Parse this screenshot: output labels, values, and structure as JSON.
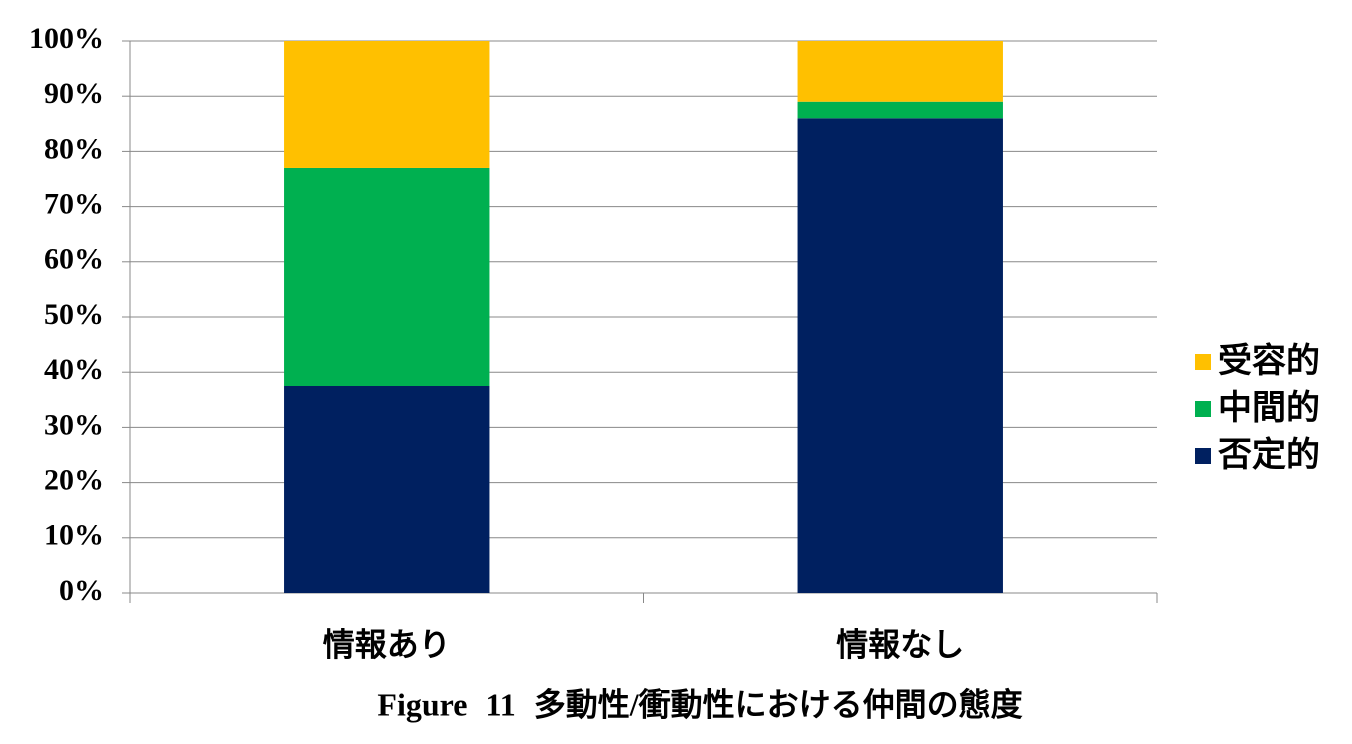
{
  "chart_data": {
    "type": "stacked_bar",
    "title": "Figure 11 多動性/衝動性における仲間の態度",
    "categories": [
      "情報あり",
      "情報なし"
    ],
    "series": [
      {
        "name": "否定的",
        "color": "#002060",
        "values": [
          37.5,
          86
        ]
      },
      {
        "name": "中間的",
        "color": "#00b050",
        "values": [
          39.5,
          3
        ]
      },
      {
        "name": "受容的",
        "color": "#ffc000",
        "values": [
          23,
          11
        ]
      }
    ],
    "ylim": [
      0,
      100
    ],
    "yticks": [
      {
        "value": 0,
        "label": "0%"
      },
      {
        "value": 10,
        "label": "10%"
      },
      {
        "value": 20,
        "label": "20%"
      },
      {
        "value": 30,
        "label": "30%"
      },
      {
        "value": 40,
        "label": "40%"
      },
      {
        "value": 50,
        "label": "50%"
      },
      {
        "value": 60,
        "label": "60%"
      },
      {
        "value": 70,
        "label": "70%"
      },
      {
        "value": 80,
        "label": "80%"
      },
      {
        "value": 90,
        "label": "90%"
      },
      {
        "value": 100,
        "label": "100%"
      }
    ],
    "grid": true,
    "legend": "right"
  }
}
